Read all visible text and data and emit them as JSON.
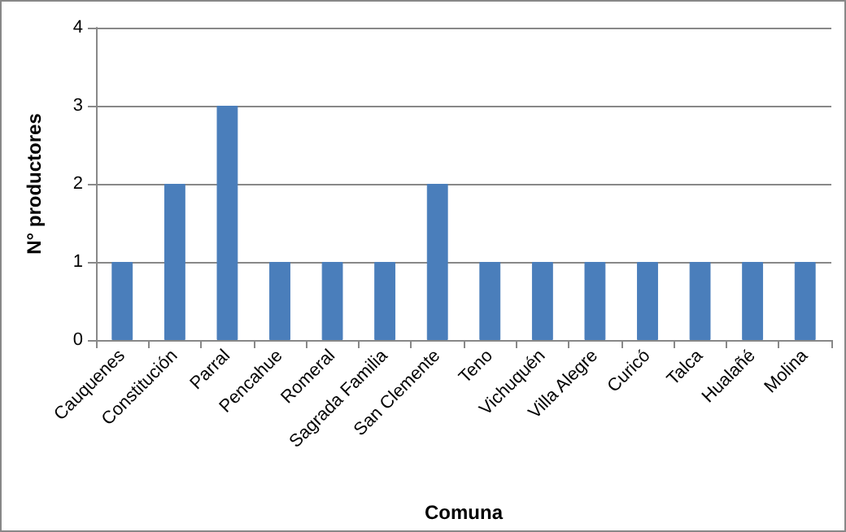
{
  "chart_data": {
    "type": "bar",
    "xlabel": "Comuna",
    "ylabel": "N° productores",
    "categories": [
      "Cauquenes",
      "Constitución",
      "Parral",
      "Pencahue",
      "Romeral",
      "Sagrada Familia",
      "San Clemente",
      "Teno",
      "Vichuquén",
      "Villa Alegre",
      "Curicó",
      "Talca",
      "Hualañé",
      "Molina"
    ],
    "values": [
      1,
      2,
      3,
      1,
      1,
      1,
      2,
      1,
      1,
      1,
      1,
      1,
      1,
      1
    ],
    "color": "#4a7ebb",
    "ylim": [
      0,
      4
    ],
    "yticks": [
      0,
      1,
      2,
      3,
      4
    ],
    "grid": "y"
  }
}
